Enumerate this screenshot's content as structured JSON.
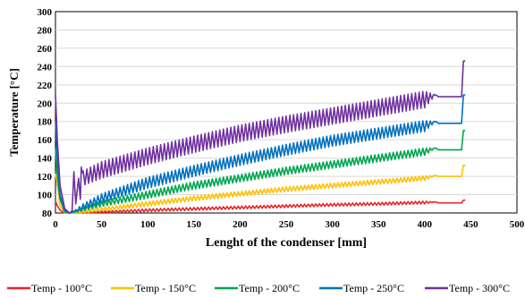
{
  "chart_data": {
    "type": "line",
    "title": "",
    "xlabel": "Lenght of the condenser [mm]",
    "ylabel": "Temperature [°C]",
    "xlim": [
      0,
      500
    ],
    "ylim": [
      80,
      300
    ],
    "xticks": [
      0,
      50,
      100,
      150,
      200,
      250,
      300,
      350,
      400,
      450,
      500
    ],
    "yticks": [
      80,
      100,
      120,
      140,
      160,
      180,
      200,
      220,
      240,
      260,
      280,
      300
    ],
    "xtick_labels": [
      "0",
      "50",
      "100",
      "150",
      "200",
      "250",
      "300",
      "350",
      "400",
      "450",
      "500"
    ],
    "ytick_labels": [
      "80",
      "100",
      "120",
      "140",
      "160",
      "180",
      "200",
      "220",
      "240",
      "260",
      "280",
      "300"
    ],
    "grid": "horizontal",
    "legend_position": "bottom",
    "oscillation_period_mm": 4,
    "series": [
      {
        "name": "Temp - 100°C",
        "color": "#e8252a",
        "x": [
          0,
          2,
          5,
          10,
          15,
          20,
          30,
          50,
          100,
          150,
          200,
          250,
          300,
          350,
          400,
          412,
          415,
          440,
          442,
          444
        ],
        "y": [
          93,
          88,
          83,
          80,
          79,
          80,
          80,
          81,
          83,
          84.5,
          86,
          87.5,
          89,
          90,
          91.5,
          92,
          91,
          91,
          94,
          94
        ],
        "amplitude": [
          0,
          0,
          0,
          0,
          0,
          0,
          0,
          1,
          1.5,
          1.5,
          1.5,
          1.5,
          1.5,
          1.5,
          1.5,
          0,
          0,
          0,
          0,
          0
        ]
      },
      {
        "name": "Temp - 150°C",
        "color": "#ffc000",
        "x": [
          0,
          2,
          5,
          10,
          15,
          20,
          25,
          30,
          50,
          100,
          150,
          200,
          250,
          300,
          350,
          400,
          412,
          415,
          440,
          442,
          444
        ],
        "y": [
          123,
          110,
          88,
          80,
          79,
          80,
          80,
          81,
          84,
          90,
          96,
          101,
          106,
          110,
          114,
          118,
          121,
          120,
          120,
          132,
          132
        ],
        "amplitude": [
          0,
          0,
          0,
          0,
          0,
          0,
          0,
          1,
          2,
          2.5,
          2.5,
          2.5,
          2.5,
          2.5,
          2.5,
          2.5,
          0,
          0,
          0,
          0,
          0
        ]
      },
      {
        "name": "Temp - 200°C",
        "color": "#00a651",
        "x": [
          0,
          2,
          5,
          10,
          15,
          20,
          25,
          30,
          50,
          100,
          150,
          200,
          250,
          300,
          350,
          400,
          412,
          415,
          440,
          442,
          444
        ],
        "y": [
          150,
          120,
          95,
          81,
          80,
          81,
          82,
          84,
          90,
          100,
          110,
          118,
          126,
          133,
          140,
          147,
          151,
          149,
          149,
          170,
          170
        ],
        "amplitude": [
          0,
          0,
          0,
          0,
          0,
          0,
          1,
          2,
          3,
          4,
          4,
          4,
          4,
          4,
          4,
          4,
          0,
          0,
          0,
          0,
          0
        ]
      },
      {
        "name": "Temp - 250°C",
        "color": "#0070c0",
        "x": [
          0,
          2,
          5,
          10,
          15,
          20,
          25,
          30,
          50,
          100,
          150,
          200,
          250,
          300,
          350,
          400,
          412,
          415,
          440,
          442,
          444
        ],
        "y": [
          180,
          140,
          100,
          83,
          80,
          82,
          84,
          87,
          96,
          113,
          126,
          138,
          149,
          159,
          167,
          175,
          180,
          178,
          178,
          209,
          209
        ],
        "amplitude": [
          0,
          0,
          0,
          0,
          0,
          0,
          2,
          3,
          5,
          6,
          6,
          6,
          6,
          6,
          6,
          6,
          0,
          0,
          0,
          0,
          0
        ]
      },
      {
        "name": "Temp - 300°C",
        "color": "#7030a0",
        "x": [
          0,
          2,
          5,
          10,
          15,
          18,
          20,
          22,
          25,
          27,
          28,
          30,
          50,
          100,
          150,
          200,
          250,
          300,
          350,
          400,
          412,
          415,
          440,
          442,
          444
        ],
        "y": [
          210,
          160,
          110,
          85,
          80,
          82,
          125,
          90,
          118,
          95,
          130,
          118,
          127,
          142,
          155,
          167,
          177,
          186,
          195,
          204,
          209,
          207,
          207,
          246,
          246
        ],
        "amplitude": [
          0,
          0,
          0,
          0,
          0,
          0,
          0,
          0,
          0,
          0,
          0,
          8,
          9,
          9,
          9,
          9,
          9,
          9,
          9,
          9,
          0,
          0,
          0,
          0,
          0
        ]
      }
    ]
  }
}
